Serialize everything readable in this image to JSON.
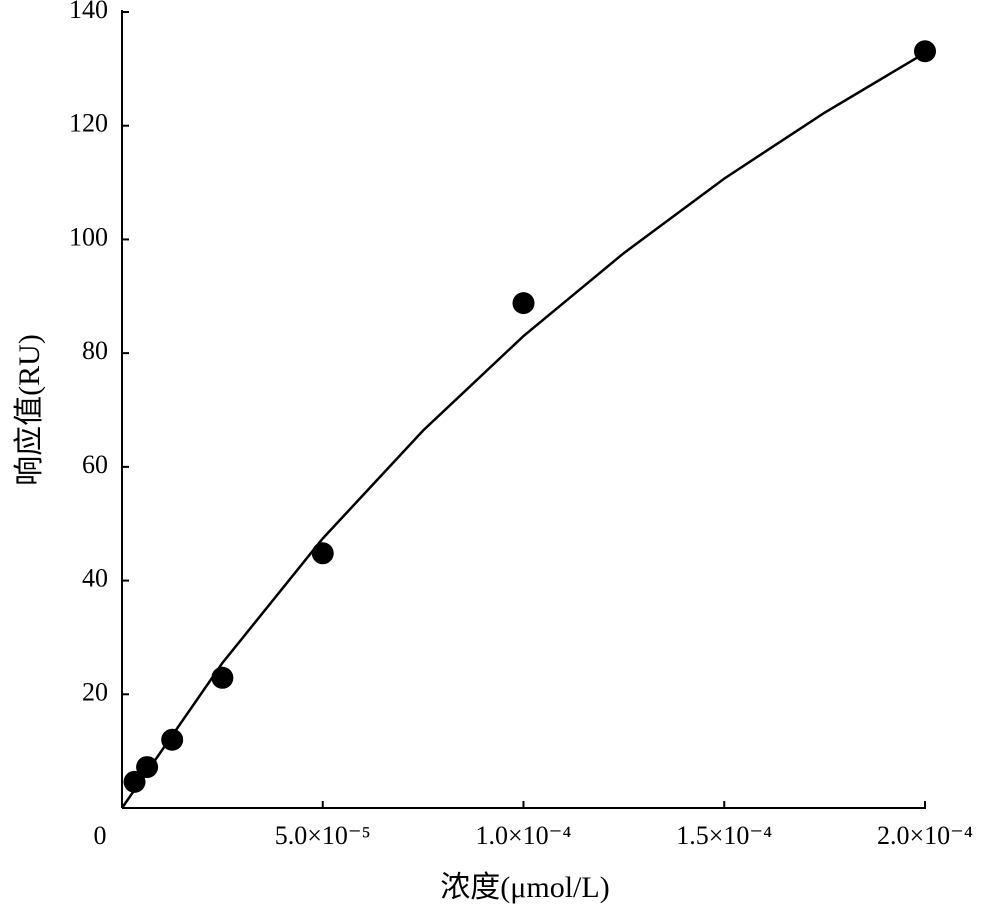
{
  "chart_data": {
    "type": "scatter",
    "x_label": "浓度(μmol/L)",
    "y_label": "响应值(RU)",
    "x": [
      3.125e-06,
      6.25e-06,
      1.25e-05,
      2.5e-05,
      5e-05,
      0.0001,
      0.0002
    ],
    "values": [
      4.6,
      7.2,
      12.0,
      22.9,
      44.8,
      88.8,
      133.1
    ],
    "color": "#000000",
    "fit": {
      "x": [
        0,
        2.5e-05,
        5e-05,
        7.5e-05,
        0.0001,
        0.000125,
        0.00015,
        0.000175,
        0.0002
      ],
      "values": [
        0,
        25.5,
        47.4,
        66.4,
        83.0,
        97.6,
        110.7,
        122.3,
        132.8
      ],
      "color": "#000000"
    },
    "xlim": [
      0,
      0.0002
    ],
    "ylim": [
      0,
      140
    ],
    "xticks": [
      0,
      {
        "value": 5e-05,
        "label": "5.0×10⁻⁵"
      },
      {
        "value": 0.0001,
        "label": "1.0×10⁻⁴"
      },
      {
        "value": 0.00015,
        "label": "1.5×10⁻⁴"
      },
      {
        "value": 0.0002,
        "label": "2.0×10⁻⁴"
      }
    ],
    "yticks": [
      20,
      40,
      60,
      80,
      100,
      120,
      140
    ],
    "grid": false
  }
}
